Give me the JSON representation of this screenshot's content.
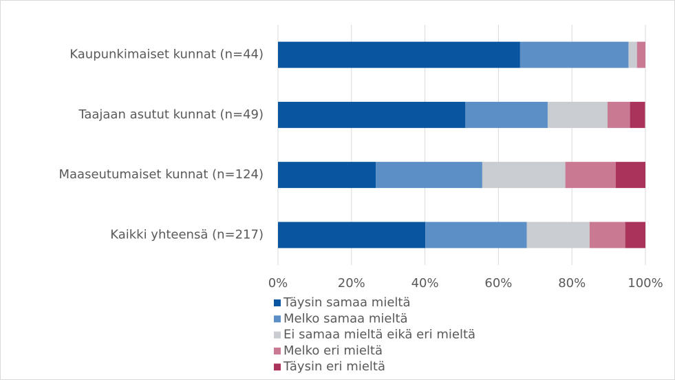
{
  "chart_data": {
    "type": "stacked_barh",
    "categories": [
      "Kaupunkimaiset kunnat (n=44)",
      "Taajaan asutut kunnat (n=49)",
      "Maaseutumaiset kunnat (n=124)",
      "Kaikki yhteensä (n=217)"
    ],
    "series": [
      {
        "name": "Täysin samaa mieltä",
        "color": "#0a559f",
        "values": [
          65.9,
          51.0,
          26.6,
          40.1
        ]
      },
      {
        "name": "Melko samaa mieltä",
        "color": "#5b8fc6",
        "values": [
          29.5,
          22.4,
          29.0,
          27.6
        ]
      },
      {
        "name": "Ei samaa mieltä eikä eri mieltä",
        "color": "#c9ccd0",
        "values": [
          2.3,
          16.3,
          22.6,
          17.1
        ]
      },
      {
        "name": "Melko eri mieltä",
        "color": "#c97a92",
        "values": [
          2.3,
          6.1,
          13.7,
          9.7
        ]
      },
      {
        "name": "Täysin eri mieltä",
        "color": "#a9335b",
        "values": [
          0,
          4.1,
          8.1,
          5.5
        ]
      }
    ],
    "xlim": [
      0,
      100
    ],
    "xticks": [
      {
        "value": 0,
        "label": "0%"
      },
      {
        "value": 20,
        "label": "20%"
      },
      {
        "value": 40,
        "label": "40%"
      },
      {
        "value": 60,
        "label": "60%"
      },
      {
        "value": 80,
        "label": "80%"
      },
      {
        "value": 100,
        "label": "100%"
      }
    ],
    "grid": true
  }
}
